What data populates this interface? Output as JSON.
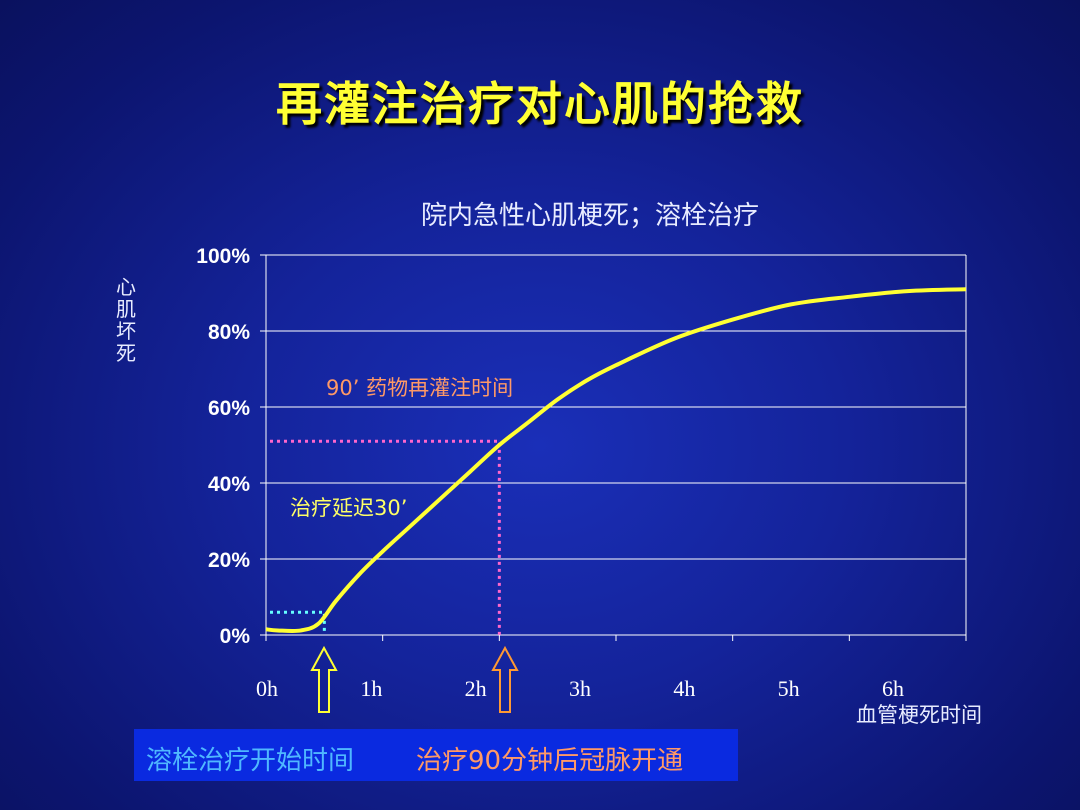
{
  "title": "再灌注治疗对心肌的抢救",
  "chart_data": {
    "type": "line",
    "title": "院内急性心肌梗死；溶栓治疗",
    "ylabel": "心肌坏死",
    "xlabel": "血管梗死时间",
    "ylim": [
      0,
      100
    ],
    "xlim": [
      0,
      6
    ],
    "y_ticks": [
      "0%",
      "20%",
      "40%",
      "60%",
      "80%",
      "100%"
    ],
    "x_ticks": [
      "0h",
      "1h",
      "2h",
      "3h",
      "4h",
      "5h",
      "6h"
    ],
    "grid": true,
    "series": [
      {
        "x": [
          0,
          0.1,
          0.3,
          0.45,
          0.6,
          0.8,
          1.0,
          1.25,
          1.5,
          1.75,
          2.0,
          2.25,
          2.5,
          2.75,
          3.0,
          3.5,
          4.0,
          4.5,
          5.0,
          5.5,
          6.0
        ],
        "y": [
          1.5,
          1.2,
          1.2,
          3,
          9,
          16,
          22,
          29,
          36,
          43,
          50,
          56,
          62,
          67,
          71,
          78,
          83,
          87,
          89,
          90.5,
          91
        ]
      }
    ],
    "annotations": [
      {
        "text": "90’ 药物再灌注时间",
        "x": 2.0,
        "y": 51
      },
      {
        "text": "治疗延迟30’",
        "x": 0.5,
        "y": 6
      }
    ],
    "markers": [
      {
        "x": 0.5,
        "label": "溶栓治疗开始时间"
      },
      {
        "x": 2.0,
        "label": "治疗90分钟后冠脉开通"
      }
    ]
  },
  "colors": {
    "curve": "#ffff33",
    "annotation_orange": "#ff9966",
    "annotation_yellow": "#ffff66",
    "pink_dotted": "#ff66cc",
    "cyan_dotted": "#66ffff",
    "arrow_yellow": "#ffff33",
    "arrow_orange": "#ff9933"
  },
  "bottom": {
    "left_text": "溶栓治疗开始时间",
    "right_text": "治疗90分钟后冠脉开通"
  }
}
